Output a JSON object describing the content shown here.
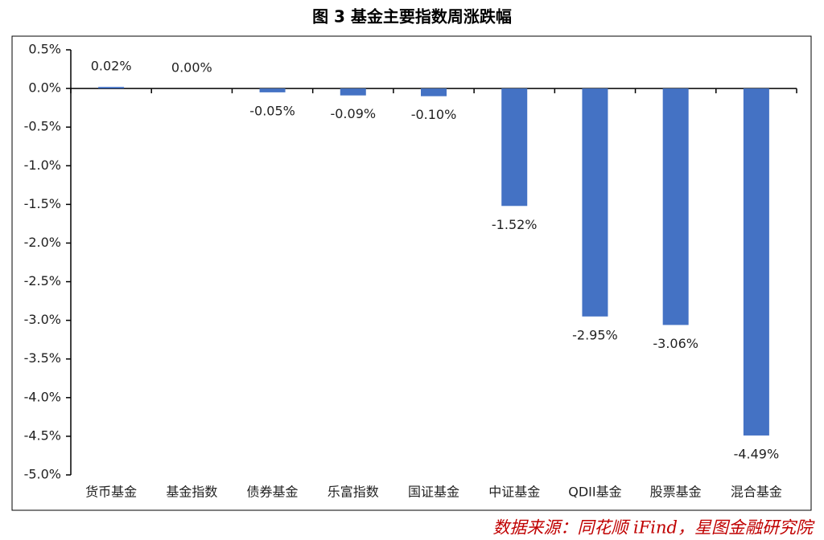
{
  "chart_data": {
    "type": "bar",
    "title": "图 3 基金主要指数周涨跌幅",
    "categories": [
      "货币基金",
      "基金指数",
      "债券基金",
      "乐富指数",
      "国证基金",
      "中证基金",
      "QDII基金",
      "股票基金",
      "混合基金"
    ],
    "values": [
      0.02,
      0.0,
      -0.05,
      -0.09,
      -0.1,
      -1.52,
      -2.95,
      -3.06,
      -4.49
    ],
    "value_labels": [
      "0.02%",
      "0.00%",
      "-0.05%",
      "-0.09%",
      "-0.10%",
      "-1.52%",
      "-2.95%",
      "-3.06%",
      "-4.49%"
    ],
    "color": "#4472c4",
    "ylim": [
      -5.0,
      0.5
    ],
    "yticks": [
      {
        "value": 0.5,
        "label": "0.5%"
      },
      {
        "value": 0,
        "label": "0.0%"
      },
      {
        "value": -0.5,
        "label": "-0.5%"
      },
      {
        "value": -1.0,
        "label": "-1.0%"
      },
      {
        "value": -1.5,
        "label": "-1.5%"
      },
      {
        "value": -2.0,
        "label": "-2.0%"
      },
      {
        "value": -2.5,
        "label": "-2.5%"
      },
      {
        "value": -3.0,
        "label": "-3.0%"
      },
      {
        "value": -3.5,
        "label": "-3.5%"
      },
      {
        "value": -4.0,
        "label": "-4.0%"
      },
      {
        "value": -4.5,
        "label": "-4.5%"
      },
      {
        "value": -5.0,
        "label": "-5.0%"
      }
    ],
    "grid": false,
    "source": "数据来源：同花顺 iFind，星图金融研究院"
  }
}
